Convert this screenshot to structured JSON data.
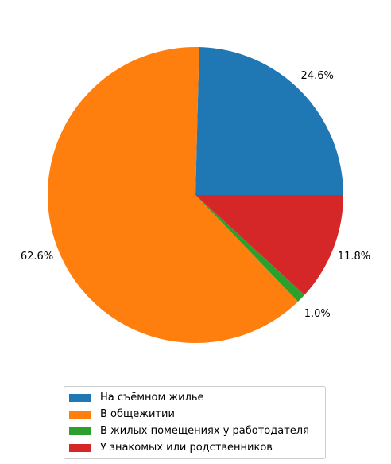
{
  "chart_data": {
    "type": "pie",
    "start_angle_deg": 0,
    "direction": "counterclockwise",
    "slices": [
      {
        "label": "На съёмном жилье",
        "value": 24.6,
        "pct_label": "24.6%",
        "color": "#1f77b4"
      },
      {
        "label": "В общежитии",
        "value": 62.6,
        "pct_label": "62.6%",
        "color": "#ff7f0e"
      },
      {
        "label": "В жилых помещениях у работодателя",
        "value": 1.0,
        "pct_label": "1.0%",
        "color": "#2ca02c"
      },
      {
        "label": "У знакомых или родственников",
        "value": 11.8,
        "pct_label": "11.8%",
        "color": "#d62728"
      }
    ],
    "legend_position": "bottom-center"
  }
}
